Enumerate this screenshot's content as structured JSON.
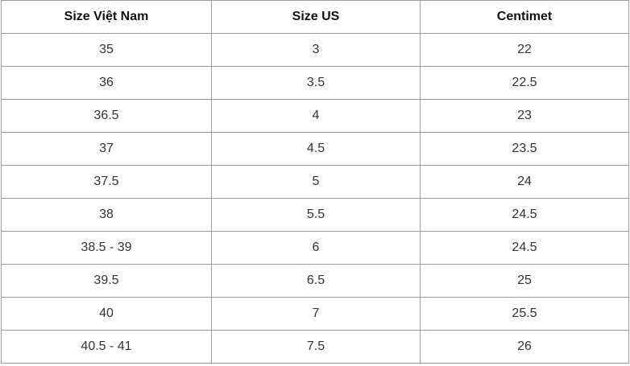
{
  "table": {
    "headers": [
      "Size Việt Nam",
      "Size US",
      "Centimet"
    ],
    "rows": [
      [
        "35",
        "3",
        "22"
      ],
      [
        "36",
        "3.5",
        "22.5"
      ],
      [
        "36.5",
        "4",
        "23"
      ],
      [
        "37",
        "4.5",
        "23.5"
      ],
      [
        "37.5",
        "5",
        "24"
      ],
      [
        "38",
        "5.5",
        "24.5"
      ],
      [
        "38.5 - 39",
        "6",
        "24.5"
      ],
      [
        "39.5",
        "6.5",
        "25"
      ],
      [
        "40",
        "7",
        "25.5"
      ],
      [
        "40.5 - 41",
        "7.5",
        "26"
      ]
    ]
  }
}
